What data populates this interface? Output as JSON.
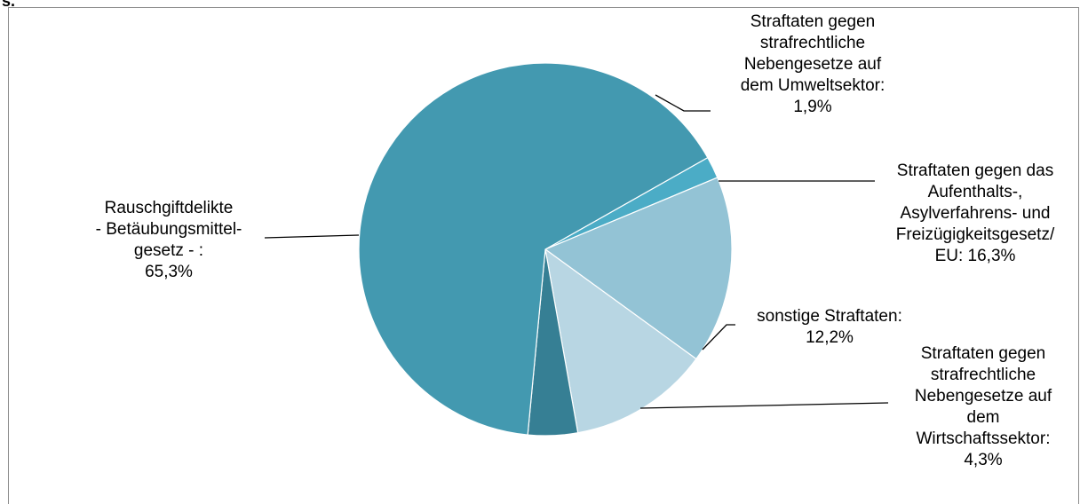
{
  "corner_label": "s.",
  "chart_data": {
    "type": "pie",
    "title": "",
    "slices": [
      {
        "lines": [
          "Straftaten gegen",
          "strafrechtliche",
          "Nebengesetze auf",
          "dem Umweltsektor:",
          "1,9%"
        ],
        "value": 1.9,
        "color": "#4bacc6"
      },
      {
        "lines": [
          "Straftaten gegen das",
          "Aufenthalts-,",
          "Asylverfahrens- und",
          "Freizügigkeitsgesetz/",
          "EU: 16,3%"
        ],
        "value": 16.3,
        "color": "#93c3d5"
      },
      {
        "lines": [
          "sonstige Straftaten:",
          "12,2%"
        ],
        "value": 12.2,
        "color": "#b8d6e3"
      },
      {
        "lines": [
          "Straftaten gegen",
          "strafrechtliche",
          "Nebengesetze auf",
          "dem",
          "Wirtschaftssektor:",
          "4,3%"
        ],
        "value": 4.3,
        "color": "#367f94"
      },
      {
        "lines": [
          "Rauschgiftdelikte",
          "- Betäubungsmittel-",
          "gesetz - :",
          "65,3%"
        ],
        "value": 65.3,
        "color": "#4399b0"
      }
    ]
  }
}
